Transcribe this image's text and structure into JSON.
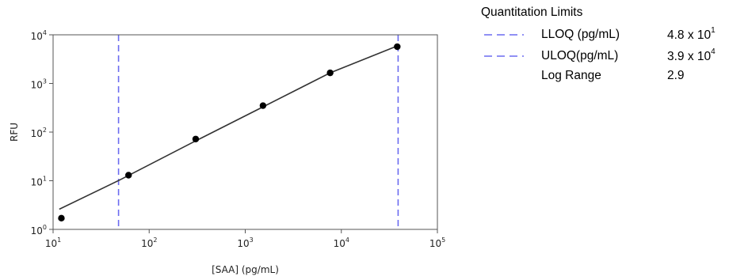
{
  "chart_data": {
    "type": "scatter",
    "xlabel": "[SAA] (pg/mL)",
    "ylabel": "RFU",
    "x_scale": "log",
    "y_scale": "log",
    "xlim": [
      10,
      100000
    ],
    "ylim": [
      1,
      10000
    ],
    "x_ticks": [
      {
        "base": "10",
        "exp": "1",
        "value": 10
      },
      {
        "base": "10",
        "exp": "2",
        "value": 100
      },
      {
        "base": "10",
        "exp": "3",
        "value": 1000
      },
      {
        "base": "10",
        "exp": "4",
        "value": 10000
      },
      {
        "base": "10",
        "exp": "5",
        "value": 100000
      }
    ],
    "y_ticks": [
      {
        "base": "10",
        "exp": "0",
        "value": 1
      },
      {
        "base": "10",
        "exp": "1",
        "value": 10
      },
      {
        "base": "10",
        "exp": "2",
        "value": 100
      },
      {
        "base": "10",
        "exp": "3",
        "value": 1000
      },
      {
        "base": "10",
        "exp": "4",
        "value": 10000
      }
    ],
    "grid": false,
    "points": [
      {
        "x": 12.2,
        "y": 1.7
      },
      {
        "x": 61,
        "y": 13
      },
      {
        "x": 305,
        "y": 72
      },
      {
        "x": 1530,
        "y": 350
      },
      {
        "x": 7650,
        "y": 1650
      },
      {
        "x": 38200,
        "y": 5700
      }
    ],
    "fit_curve": [
      {
        "x": 11.6,
        "y": 2.6
      },
      {
        "x": 50,
        "y": 10.5
      },
      {
        "x": 305,
        "y": 66
      },
      {
        "x": 1530,
        "y": 330
      },
      {
        "x": 7650,
        "y": 1650
      },
      {
        "x": 38200,
        "y": 5900
      }
    ],
    "vlines": [
      {
        "name": "LLOQ",
        "x": 48,
        "color": "#6b6bf0",
        "style": "dashed"
      },
      {
        "name": "ULOQ",
        "x": 39000,
        "color": "#6b6bf0",
        "style": "dashed"
      }
    ],
    "colors": {
      "points": "#000000",
      "curve": "#333333",
      "limit_lines": "#6b6bf0",
      "axes": "#555555"
    }
  },
  "legend": {
    "title": "Quantitation Limits",
    "rows": [
      {
        "label": "LLOQ (pg/mL)",
        "value": "4.8 x 10",
        "exp": "1",
        "swatch": "dashed"
      },
      {
        "label": "ULOQ(pg/mL)",
        "value": "3.9 x 10",
        "exp": "4",
        "swatch": "dashed"
      },
      {
        "label": "Log Range",
        "value": "2.9",
        "exp": "",
        "swatch": "none"
      }
    ]
  }
}
